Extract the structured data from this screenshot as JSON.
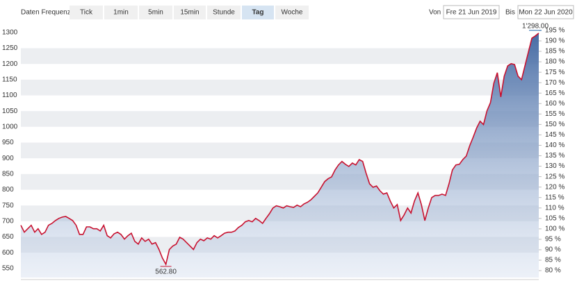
{
  "controls": {
    "frequency_label": "Daten Frequenz",
    "buttons": [
      "Tick",
      "1min",
      "5min",
      "15min",
      "Stunde",
      "Tag",
      "Woche"
    ],
    "active_index": 5,
    "from_label": "Von",
    "from_date": "Fre 21 Jun 2019",
    "to_label": "Bis",
    "to_date": "Mon 22 Jun 2020"
  },
  "chart_data": {
    "type": "line",
    "values": [
      687,
      665,
      676,
      687,
      665,
      676,
      658,
      665,
      687,
      693,
      702,
      709,
      713,
      715,
      709,
      702,
      687,
      658,
      658,
      682,
      682,
      676,
      676,
      669,
      687,
      654,
      647,
      660,
      665,
      658,
      643,
      654,
      662,
      636,
      627,
      647,
      636,
      643,
      627,
      632,
      610,
      583,
      562.8,
      610,
      621,
      627,
      649,
      643,
      632,
      621,
      610,
      632,
      643,
      638,
      647,
      643,
      654,
      647,
      654,
      662,
      665,
      665,
      669,
      680,
      687,
      698,
      702,
      698,
      709,
      702,
      693,
      709,
      724,
      742,
      749,
      746,
      742,
      749,
      746,
      744,
      751,
      746,
      755,
      760,
      768,
      779,
      790,
      808,
      826,
      835,
      841,
      863,
      879,
      890,
      881,
      874,
      885,
      879,
      896,
      890,
      852,
      819,
      808,
      812,
      797,
      786,
      790,
      764,
      742,
      753,
      702,
      720,
      742,
      726,
      764,
      790,
      753,
      702,
      742,
      775,
      782,
      782,
      786,
      782,
      819,
      863,
      879,
      881,
      896,
      907,
      940,
      967,
      996,
      1018,
      1007,
      1051,
      1077,
      1139,
      1172,
      1095,
      1161,
      1194,
      1201,
      1198,
      1161,
      1150,
      1194,
      1238,
      1282,
      1289,
      1298
    ],
    "color": "#c8102e",
    "max_label": "1'298.00",
    "min_label": "562.80",
    "ylim": [
      521,
      1315
    ],
    "yticks": [
      550,
      600,
      650,
      700,
      750,
      800,
      850,
      900,
      950,
      1000,
      1050,
      1100,
      1150,
      1200,
      1250,
      1300
    ],
    "y2lim": [
      76.7,
      196.3
    ],
    "y2ticks": [
      {
        "value": 80,
        "label": "80 %"
      },
      {
        "value": 85,
        "label": "85 %"
      },
      {
        "value": 90,
        "label": "90 %"
      },
      {
        "value": 95,
        "label": "95 %"
      },
      {
        "value": 100,
        "label": "100 %"
      },
      {
        "value": 105,
        "label": "105 %"
      },
      {
        "value": 110,
        "label": "110 %"
      },
      {
        "value": 115,
        "label": "115 %"
      },
      {
        "value": 120,
        "label": "120 %"
      },
      {
        "value": 125,
        "label": "125 %"
      },
      {
        "value": 130,
        "label": "130 %"
      },
      {
        "value": 135,
        "label": "135 %"
      },
      {
        "value": 140,
        "label": "140 %"
      },
      {
        "value": 145,
        "label": "145 %"
      },
      {
        "value": 150,
        "label": "150 %"
      },
      {
        "value": 155,
        "label": "155 %"
      },
      {
        "value": 160,
        "label": "160 %"
      },
      {
        "value": 165,
        "label": "165 %"
      },
      {
        "value": 170,
        "label": "170 %"
      },
      {
        "value": 175,
        "label": "175 %"
      },
      {
        "value": 180,
        "label": "180 %"
      },
      {
        "value": 185,
        "label": "185 %"
      },
      {
        "value": 190,
        "label": "190 %"
      },
      {
        "value": 195,
        "label": "195 %"
      }
    ],
    "grid": true
  }
}
